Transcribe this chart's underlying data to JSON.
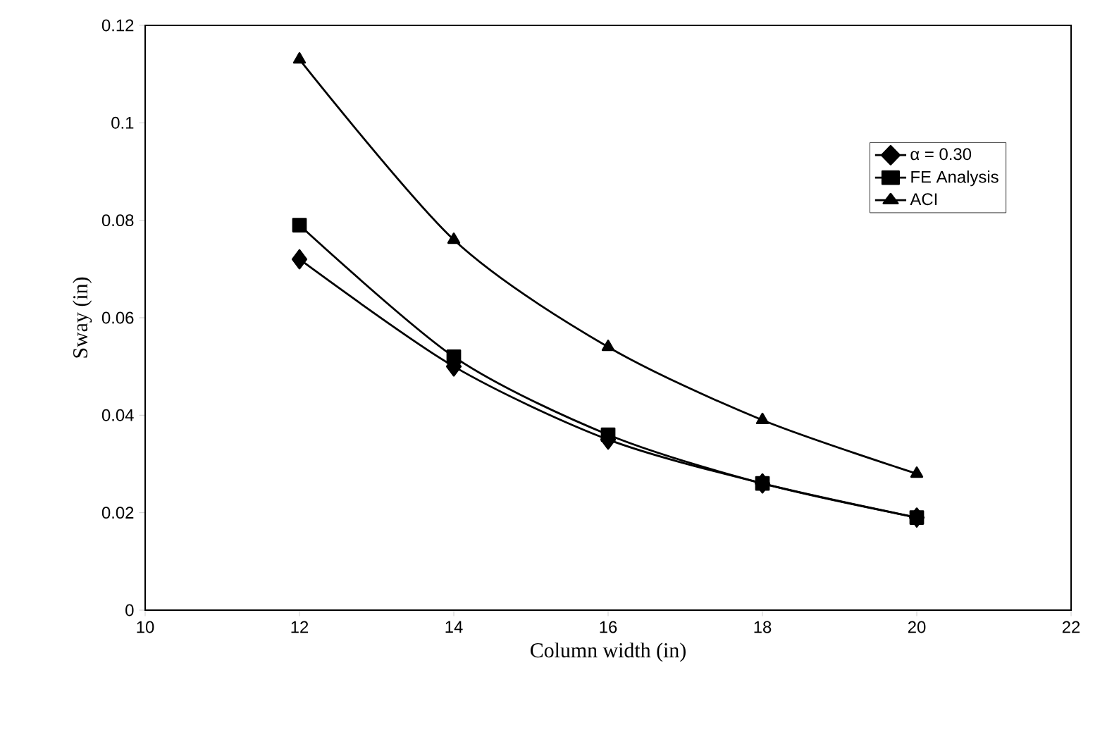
{
  "chart_data": {
    "type": "line",
    "xlabel": "Column width (in)",
    "ylabel": "Sway (in)",
    "x": [
      12,
      14,
      16,
      18,
      20
    ],
    "series": [
      {
        "name": "α = 0.30",
        "color": "#000000",
        "marker": "diamond",
        "values": [
          0.072,
          0.05,
          0.035,
          0.026,
          0.019
        ]
      },
      {
        "name": "FE Analysis",
        "color": "#000000",
        "marker": "square",
        "values": [
          0.079,
          0.052,
          0.036,
          0.026,
          0.019
        ]
      },
      {
        "name": "ACI",
        "color": "#000000",
        "marker": "triangle",
        "values": [
          0.113,
          0.076,
          0.054,
          0.039,
          0.028
        ]
      }
    ],
    "xlim": [
      10,
      22
    ],
    "xticks": [
      10,
      12,
      14,
      16,
      18,
      20,
      22
    ],
    "ylim": [
      0,
      0.12
    ],
    "yticks": [
      0,
      0.02,
      0.04,
      0.06,
      0.08,
      0.1,
      0.12
    ],
    "grid": false,
    "legend": "top right",
    "line_style": "solid"
  }
}
